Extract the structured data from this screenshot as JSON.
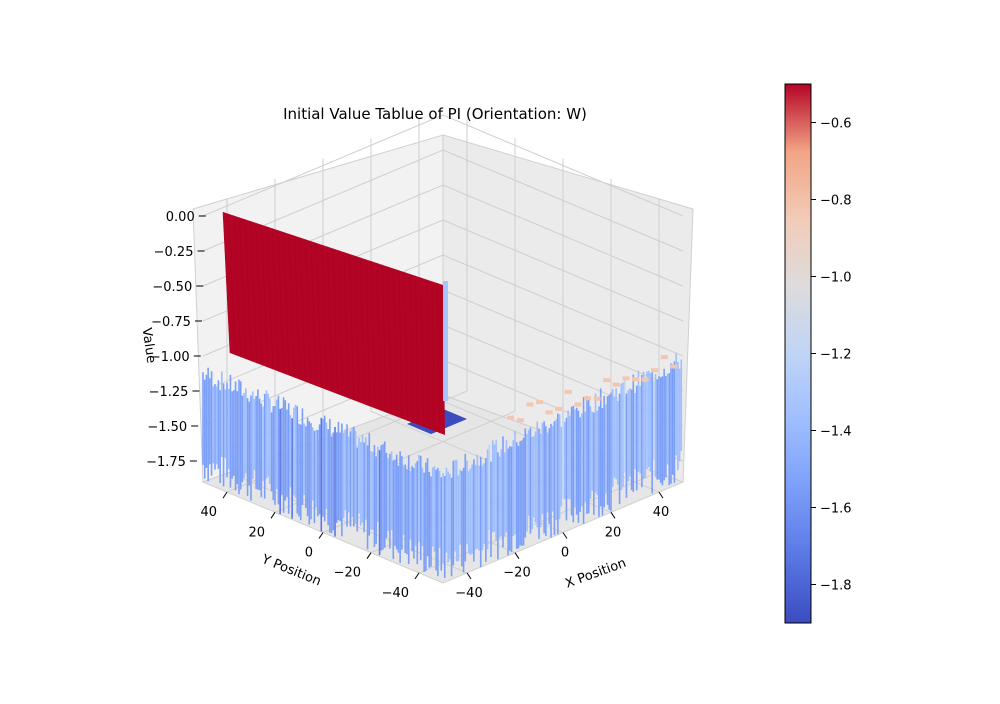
{
  "chart_data": {
    "type": "surface3d",
    "title": "Initial Value Tablue of PI (Orientation: W)",
    "xlabel": "X Position",
    "ylabel": "Y Position",
    "zlabel": "Value",
    "xlim": [
      -50,
      50
    ],
    "ylim": [
      -50,
      50
    ],
    "zlim": [
      -1.9,
      0.05
    ],
    "x_ticks": [
      {
        "label": "−40",
        "value": -40
      },
      {
        "label": "−20",
        "value": -20
      },
      {
        "label": "0",
        "value": 0
      },
      {
        "label": "20",
        "value": 20
      },
      {
        "label": "40",
        "value": 40
      }
    ],
    "y_ticks": [
      {
        "label": "−40",
        "value": -40
      },
      {
        "label": "−20",
        "value": -20
      },
      {
        "label": "0",
        "value": 0
      },
      {
        "label": "20",
        "value": 20
      },
      {
        "label": "40",
        "value": 40
      }
    ],
    "z_ticks": [
      {
        "label": "0.00",
        "value": 0.0
      },
      {
        "label": "−0.25",
        "value": -0.25
      },
      {
        "label": "−0.50",
        "value": -0.5
      },
      {
        "label": "−0.75",
        "value": -0.75
      },
      {
        "label": "−1.00",
        "value": -1.0
      },
      {
        "label": "−1.25",
        "value": -1.25
      },
      {
        "label": "−1.50",
        "value": -1.5
      },
      {
        "label": "−1.75",
        "value": -1.75
      }
    ],
    "colorbar": {
      "colormap": "coolwarm",
      "range": [
        -1.9,
        -0.5
      ],
      "ticks": [
        {
          "label": "−0.6",
          "value": -0.6
        },
        {
          "label": "−0.8",
          "value": -0.8
        },
        {
          "label": "−1.0",
          "value": -1.0
        },
        {
          "label": "−1.2",
          "value": -1.2
        },
        {
          "label": "−1.4",
          "value": -1.4
        },
        {
          "label": "−1.6",
          "value": -1.6
        },
        {
          "label": "−1.8",
          "value": -1.8
        }
      ]
    },
    "surface": {
      "description_values": {
        "wall_x": 50,
        "wall_value": 0.0,
        "floor_value_min": -1.9,
        "floor_value_max": -1.2,
        "edge_values": [
          -0.9,
          -1.1
        ]
      }
    },
    "colors": {
      "wall": "#b40426",
      "floor_low": "#3b4cc0",
      "floor_high": "#dddddd",
      "edge_high": "#f4c6b0"
    }
  }
}
